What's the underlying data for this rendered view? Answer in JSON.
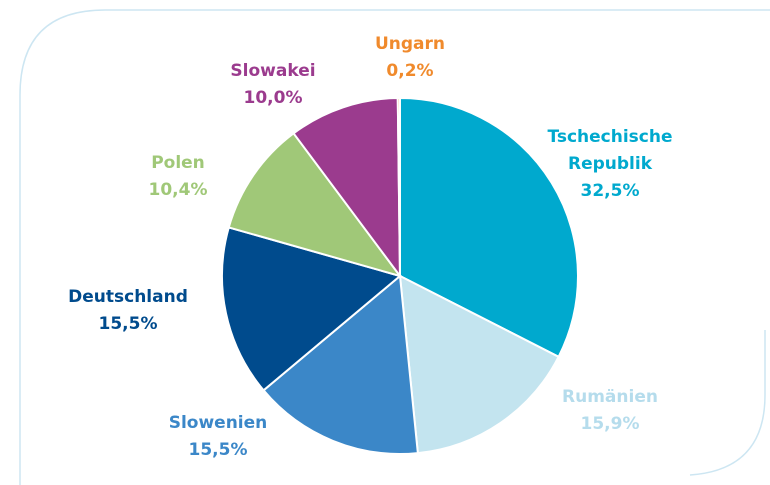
{
  "chart_data": {
    "type": "pie",
    "categories": [
      "Tschechische Republik",
      "Rumänien",
      "Slowenien",
      "Deutschland",
      "Polen",
      "Slowakei",
      "Ungarn"
    ],
    "values": [
      32.5,
      15.9,
      15.5,
      15.5,
      10.4,
      10.0,
      0.2
    ],
    "value_labels": [
      "32,5%",
      "15,9%",
      "15,5%",
      "15,5%",
      "10,4%",
      "10,0%",
      "0,2%"
    ],
    "colors": [
      "#00a9ce",
      "#c3e4ef",
      "#3b87c8",
      "#004b8d",
      "#a0c878",
      "#9b3b8e",
      "#f08a2c"
    ],
    "label_colors": [
      "#00a9ce",
      "#b5dcec",
      "#3b87c8",
      "#004b8d",
      "#a0c878",
      "#9b3b8e",
      "#f08a2c"
    ]
  }
}
